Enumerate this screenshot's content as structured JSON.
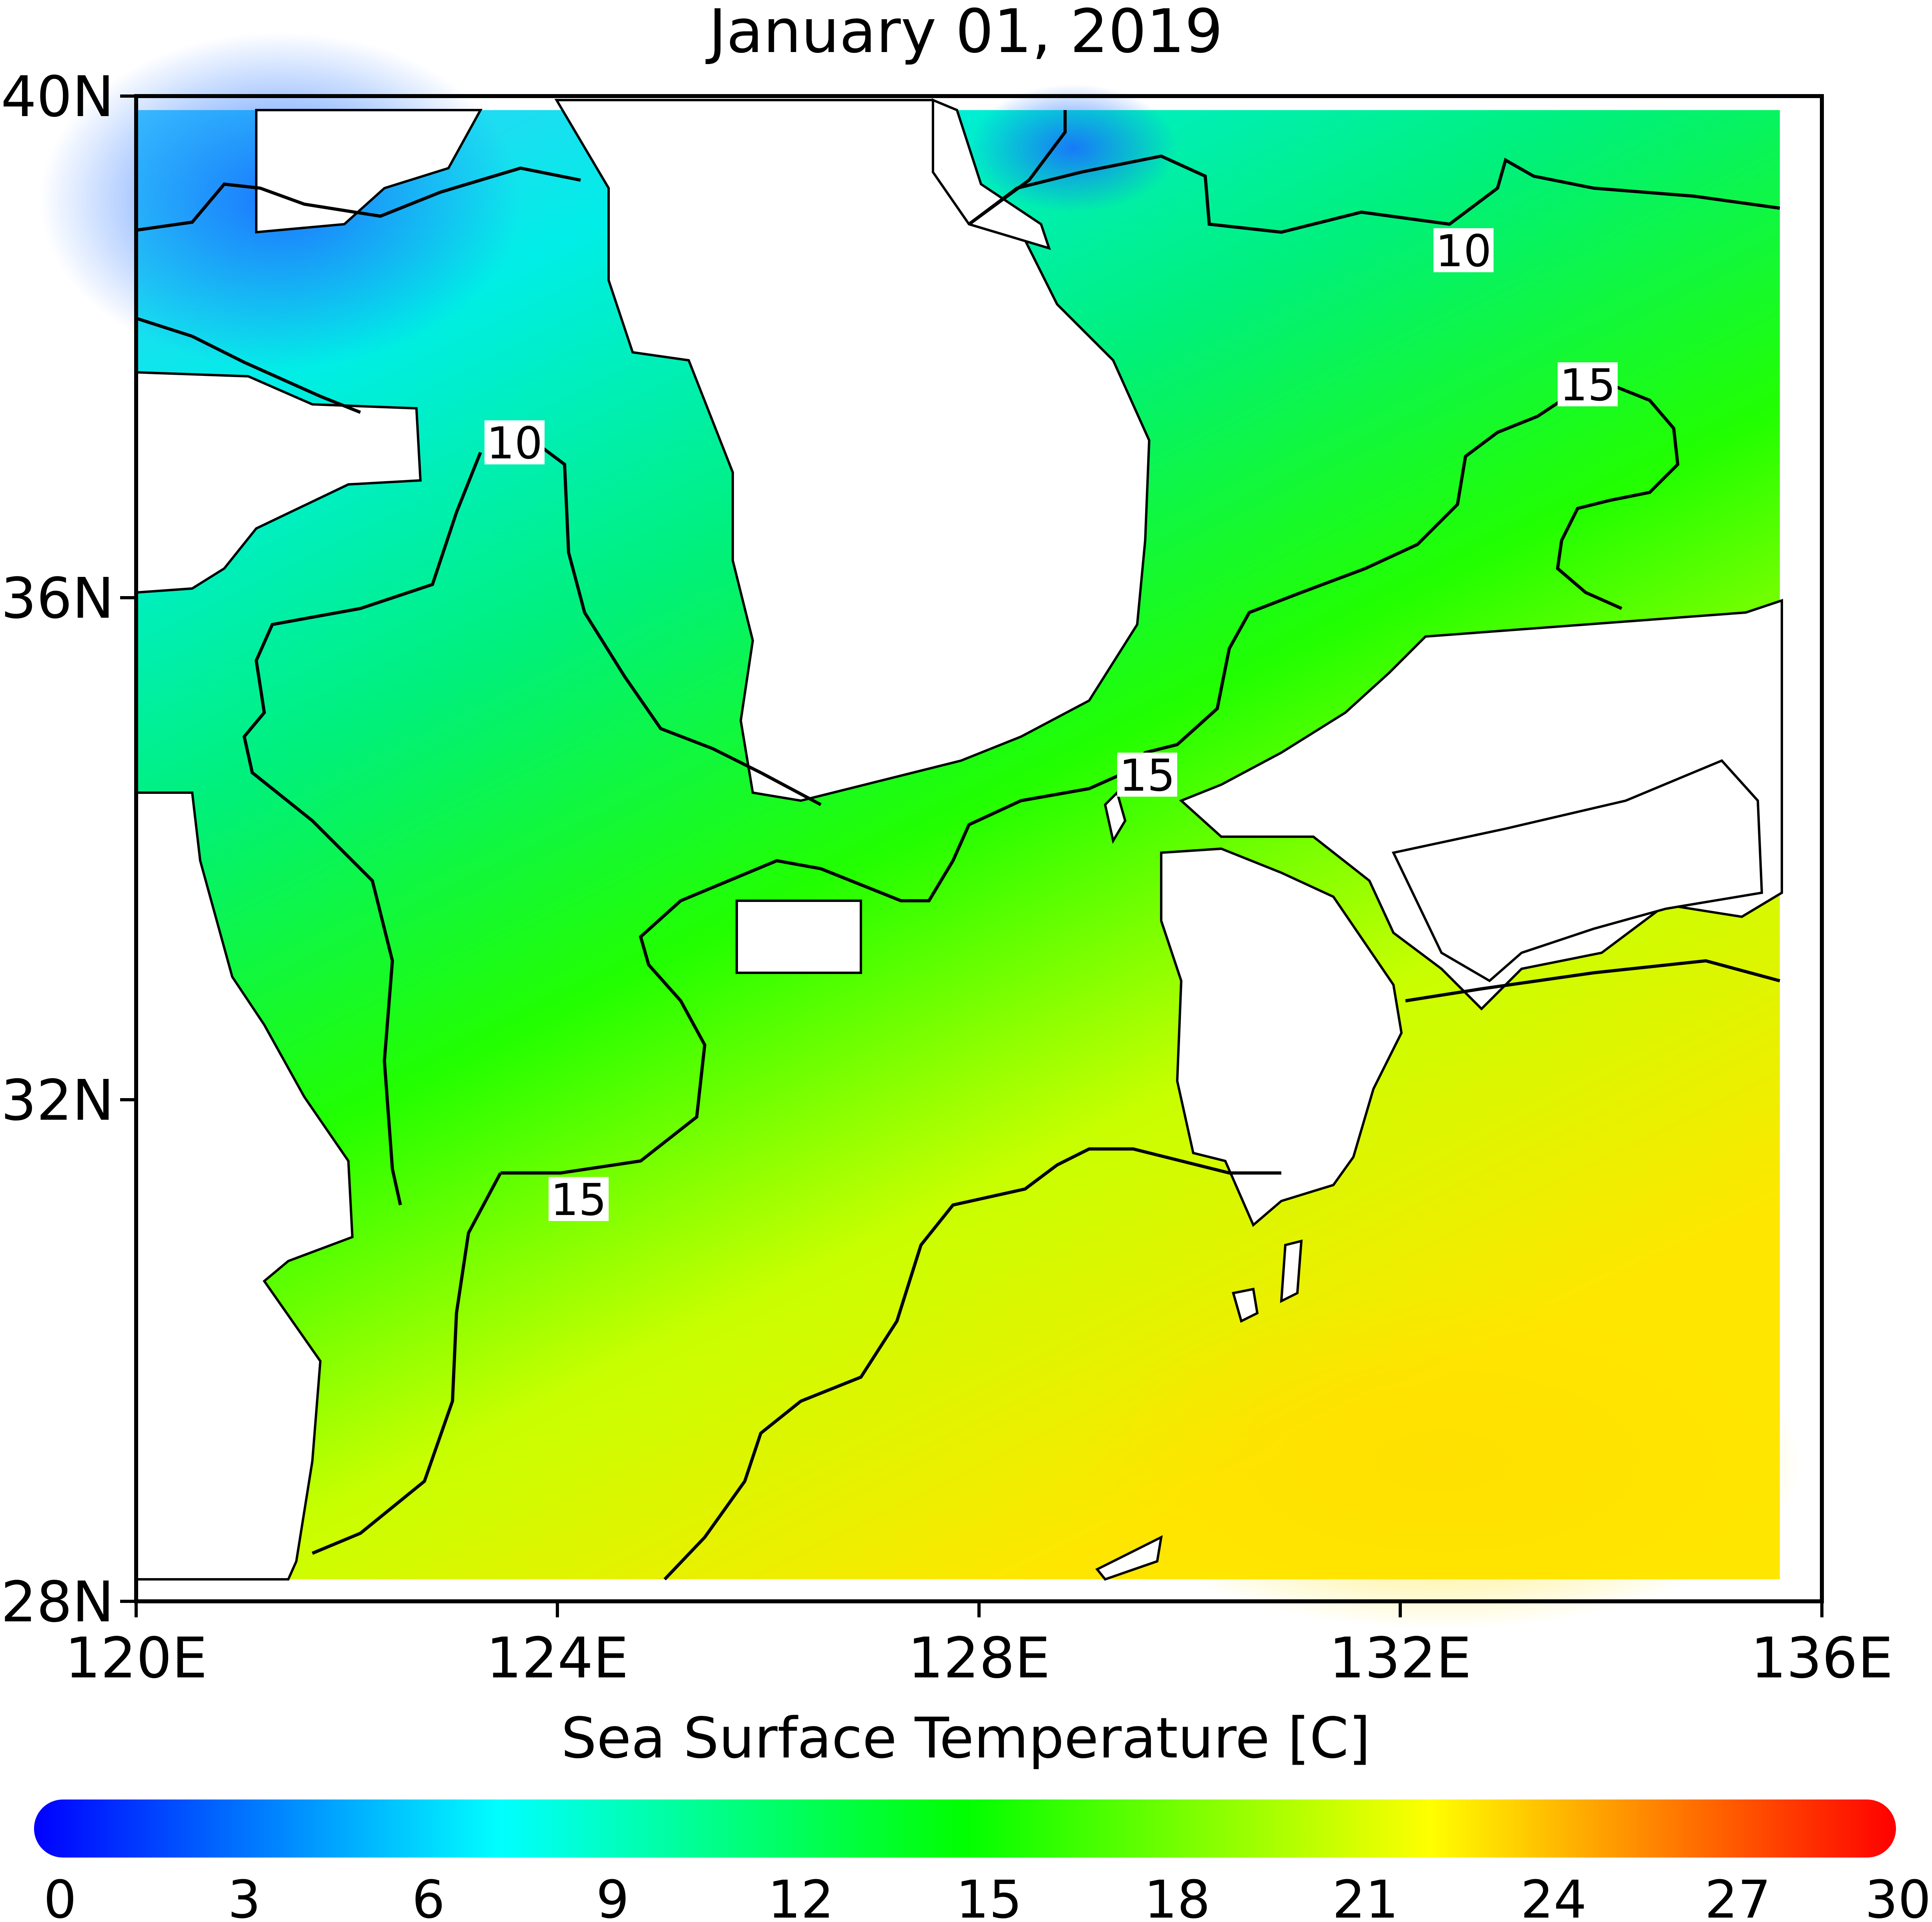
{
  "title": "January 01, 2019",
  "axis_label": "Sea Surface Temperature [C]",
  "x_ticks": [
    "120E",
    "124E",
    "128E",
    "132E",
    "136E"
  ],
  "y_ticks": [
    "40N",
    "36N",
    "32N",
    "28N"
  ],
  "contour_labels": [
    "10",
    "10",
    "15",
    "15",
    "15"
  ],
  "colorbar": {
    "ticks": [
      "0",
      "3",
      "6",
      "9",
      "12",
      "15",
      "18",
      "21",
      "24",
      "27",
      "30"
    ],
    "range": [
      0,
      30
    ],
    "stops": [
      "#0000ff",
      "#00ffff",
      "#00ff00",
      "#ffff00",
      "#ff0000"
    ]
  },
  "map": {
    "lon_range": [
      120,
      136
    ],
    "lat_range": [
      28,
      40
    ],
    "variable": "sea surface temperature",
    "units": "C",
    "contour_levels": [
      10,
      15,
      20
    ]
  }
}
